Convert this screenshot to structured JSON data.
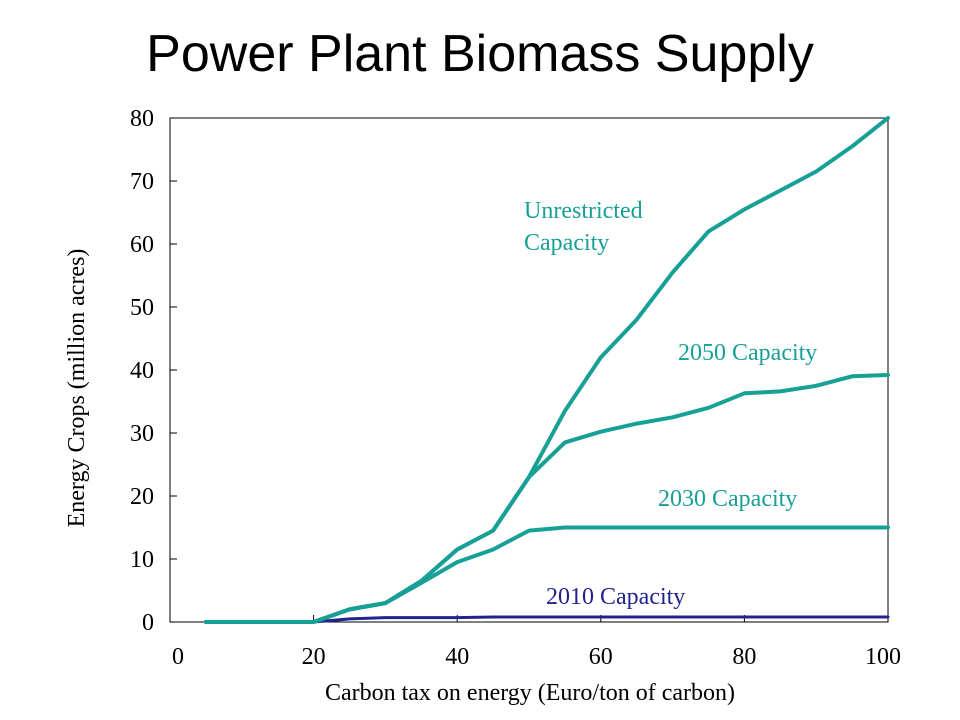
{
  "chart_data": {
    "type": "line",
    "title": "Power Plant Biomass Supply",
    "xlabel": "Carbon tax on energy (Euro/ton of carbon)",
    "ylabel": "Energy Crops (million acres)",
    "xlim": [
      0,
      100
    ],
    "ylim": [
      0,
      80
    ],
    "x_ticks": [
      "0",
      "20",
      "40",
      "60",
      "80",
      "100"
    ],
    "y_ticks": [
      "0",
      "10",
      "20",
      "30",
      "40",
      "50",
      "60",
      "70",
      "80"
    ],
    "grid": false,
    "legend": "inline labels",
    "series": [
      {
        "name": "Unrestricted Capacity",
        "label_lines": [
          "Unrestricted",
          "Capacity"
        ],
        "color": "#17A096",
        "x": [
          5,
          10,
          15,
          20,
          25,
          30,
          35,
          40,
          45,
          50,
          55,
          60,
          65,
          70,
          75,
          80,
          85,
          90,
          95,
          100
        ],
        "y": [
          0,
          0,
          0,
          0,
          2,
          3,
          6.5,
          11.5,
          14.5,
          23,
          33.5,
          42,
          48,
          55.5,
          62,
          65.5,
          68.5,
          71.5,
          75.5,
          80
        ]
      },
      {
        "name": "2050 Capacity",
        "label_lines": [
          "2050 Capacity"
        ],
        "color": "#17A096",
        "x": [
          5,
          10,
          15,
          20,
          25,
          30,
          35,
          40,
          45,
          50,
          55,
          60,
          65,
          70,
          75,
          80,
          85,
          90,
          95,
          100
        ],
        "y": [
          0,
          0,
          0,
          0,
          2,
          3,
          6.5,
          11.5,
          14.5,
          23,
          28.5,
          30.2,
          31.5,
          32.5,
          34,
          36.3,
          36.6,
          37.5,
          39,
          39.2
        ]
      },
      {
        "name": "2030 Capacity",
        "label_lines": [
          "2030 Capacity"
        ],
        "color": "#17A096",
        "x": [
          5,
          10,
          15,
          20,
          25,
          30,
          35,
          40,
          45,
          50,
          55,
          60,
          65,
          70,
          75,
          80,
          85,
          90,
          95,
          100
        ],
        "y": [
          0,
          0,
          0,
          0,
          2,
          3,
          6.2,
          9.5,
          11.5,
          14.5,
          15,
          15,
          15,
          15,
          15,
          15,
          15,
          15,
          15,
          15
        ]
      },
      {
        "name": "2010 Capacity",
        "label_lines": [
          "2010 Capacity"
        ],
        "color": "#23238E",
        "x": [
          5,
          10,
          15,
          20,
          25,
          30,
          35,
          40,
          45,
          50,
          55,
          60,
          65,
          70,
          75,
          80,
          85,
          90,
          95,
          100
        ],
        "y": [
          0,
          0,
          0,
          0,
          0.5,
          0.7,
          0.7,
          0.7,
          0.8,
          0.8,
          0.8,
          0.8,
          0.8,
          0.8,
          0.8,
          0.8,
          0.8,
          0.8,
          0.8,
          0.8
        ]
      }
    ]
  }
}
